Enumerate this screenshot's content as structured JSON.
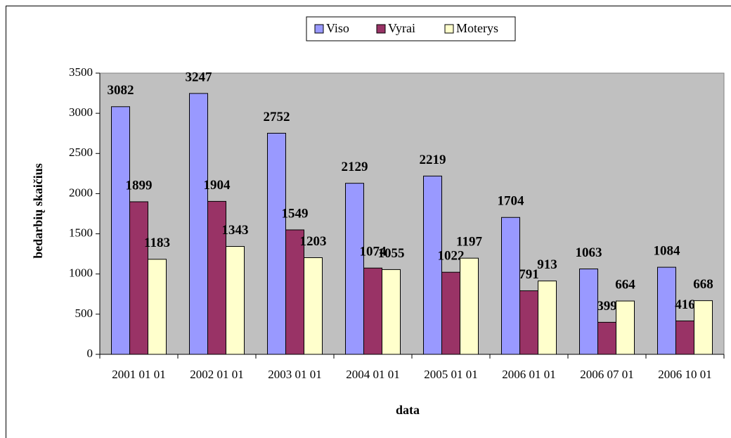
{
  "chart_data": {
    "type": "bar",
    "ylabel": "bedarbių skaičius",
    "xlabel": "data",
    "categories": [
      "2001 01 01",
      "2002 01 01",
      "2003 01 01",
      "2004 01 01",
      "2005 01 01",
      "2006 01 01",
      "2006 07 01",
      "2006 10 01"
    ],
    "series": [
      {
        "name": "Viso",
        "color": "#9999ff",
        "values": [
          3082,
          3247,
          2752,
          2129,
          2219,
          1704,
          1063,
          1084
        ]
      },
      {
        "name": "Vyrai",
        "color": "#993366",
        "values": [
          1899,
          1904,
          1549,
          1074,
          1022,
          791,
          399,
          416
        ]
      },
      {
        "name": "Moterys",
        "color": "#ffffcc",
        "values": [
          1183,
          1343,
          1203,
          1055,
          1197,
          913,
          664,
          668
        ]
      }
    ],
    "ylim": [
      0,
      3500
    ],
    "yticks": [
      0,
      500,
      1000,
      1500,
      2000,
      2500,
      3000,
      3500
    ],
    "plot_background": "#c0c0c0",
    "legend": "top"
  }
}
